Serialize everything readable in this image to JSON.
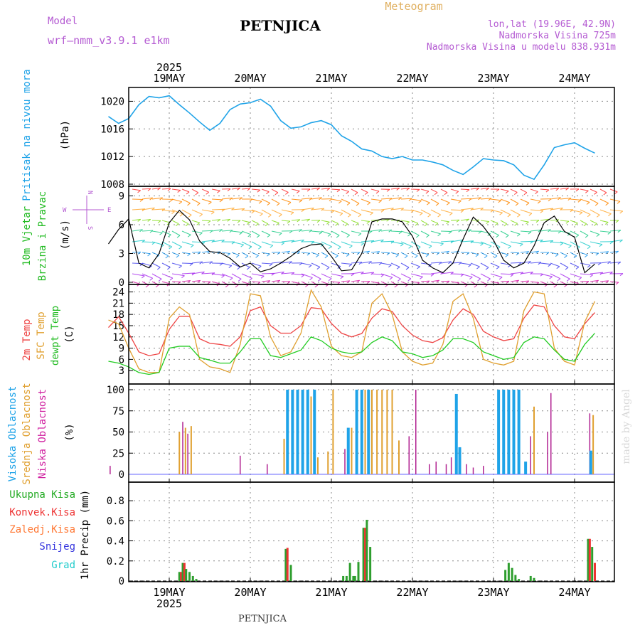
{
  "header": {
    "model_label": "Model",
    "model_name": "wrf—nmm_v3.9.1  e1km",
    "station": "PETNJICA",
    "product": "Meteogram",
    "coords": "lon,lat (19.96E, 42.9N)",
    "elevation": "Nadmorska Visina 725m",
    "model_elevation": "Nadmorska Visina u modelu 838.931m",
    "footer_station": "PETNJICA",
    "watermark": "made by Angel"
  },
  "time_axis": {
    "year": "2025",
    "day_labels": [
      "19MAY",
      "20MAY",
      "21MAY",
      "22MAY",
      "23MAY",
      "24MAY"
    ]
  },
  "panels": {
    "pressure": {
      "label": "Pritisak na nivou mora",
      "unit": "(hPa)",
      "ticks": [
        "1008",
        "1012",
        "1016",
        "1020"
      ]
    },
    "wind": {
      "label_line1": "10m Vjetar",
      "label_line2": "Brzina i Pravac",
      "unit": "(m/s)",
      "ticks": [
        "0",
        "3",
        "6",
        "9"
      ],
      "compass_top": "N",
      "compass_w": "W",
      "compass_e": "E",
      "compass_s": "S"
    },
    "temp": {
      "label_2m": "2m Temp",
      "label_sfc": "SFC Temp",
      "label_dew": "dewpt Temp",
      "unit": "(C)",
      "ticks": [
        "3",
        "6",
        "9",
        "12",
        "15",
        "18",
        "21",
        "24"
      ]
    },
    "cloud": {
      "label_high": "Visoka Oblacnost",
      "label_mid": "Srednja Oblacnost",
      "label_low": "Niska Oblacnost",
      "unit": "(%)",
      "ticks": [
        "0",
        "25",
        "50",
        "75",
        "100"
      ]
    },
    "precip": {
      "label_total": "Ukupna Kisa",
      "label_conv": "Konvek.Kisa",
      "label_frz": "Zaledj.Kisa",
      "label_snow": "Snijeg",
      "label_grad": "Grad",
      "unit": "1hr Precip (mm)",
      "ticks": [
        "0",
        "0.2",
        "0.4",
        "0.6",
        "0.8"
      ]
    }
  },
  "colors": {
    "pressure": "#1fa3e8",
    "wind_speed": "#000000",
    "t2m": "#ee4444",
    "sfc": "#e0a030",
    "dew": "#22cc22",
    "cloud_high": "#1fa3e8",
    "cloud_mid": "#e0a030",
    "cloud_low": "#b02090",
    "precip_total": "#2e9e2e",
    "precip_conv": "#ee3333",
    "precip_frz": "#ff7733",
    "precip_snow": "#3333dd",
    "precip_grad": "#22cccc"
  },
  "chart_data": [
    {
      "type": "line",
      "name": "pressure",
      "x": [
        0,
        3,
        6,
        9,
        12,
        15,
        18,
        21,
        24,
        27,
        30,
        33,
        36,
        39,
        42,
        45,
        48,
        51,
        54,
        57,
        60,
        63,
        66,
        69,
        72,
        75,
        78,
        81,
        84,
        87,
        90,
        93,
        96,
        99,
        102,
        105,
        108,
        111,
        114,
        117,
        120,
        123,
        126,
        129,
        132,
        135,
        138,
        141,
        144
      ],
      "y": [
        1017.8,
        1016.8,
        1017.5,
        1019.5,
        1020.7,
        1020.5,
        1020.8,
        1019.5,
        1018.3,
        1017.0,
        1015.8,
        1016.8,
        1018.8,
        1019.6,
        1019.8,
        1020.3,
        1019.3,
        1017.2,
        1016.1,
        1016.3,
        1016.9,
        1017.2,
        1016.6,
        1015.0,
        1014.2,
        1013.1,
        1012.8,
        1012.0,
        1011.7,
        1012.0,
        1011.5,
        1011.5,
        1011.2,
        1010.8,
        1010.0,
        1009.4,
        1010.5,
        1011.7,
        1011.5,
        1011.4,
        1010.8,
        1009.3,
        1008.7,
        1010.8,
        1013.3,
        1013.7,
        1014.0,
        1013.2,
        1012.5
      ],
      "ylim": [
        1008,
        1022
      ]
    },
    {
      "type": "line",
      "name": "wind_speed",
      "x": [
        0,
        3,
        6,
        9,
        12,
        15,
        18,
        21,
        24,
        27,
        30,
        33,
        36,
        39,
        42,
        45,
        48,
        51,
        54,
        57,
        60,
        63,
        66,
        69,
        72,
        75,
        78,
        81,
        84,
        87,
        90,
        93,
        96,
        99,
        102,
        105,
        108,
        111,
        114,
        117,
        120,
        123,
        126,
        129,
        132,
        135,
        138,
        141,
        144
      ],
      "y": [
        4.0,
        5.5,
        6.6,
        2.0,
        1.5,
        3.0,
        6.2,
        7.5,
        6.5,
        4.3,
        3.2,
        3.1,
        2.5,
        1.6,
        2.0,
        1.1,
        1.4,
        2.0,
        2.7,
        3.5,
        3.9,
        4.0,
        2.7,
        1.2,
        1.3,
        3.0,
        6.3,
        6.6,
        6.6,
        6.3,
        4.8,
        2.3,
        1.5,
        1.0,
        2.0,
        4.5,
        6.8,
        5.8,
        4.4,
        2.3,
        1.5,
        2.0,
        3.8,
        6.2,
        6.9,
        5.3,
        4.7,
        1.0,
        1.9
      ],
      "ylim": [
        0,
        10
      ]
    },
    {
      "type": "line",
      "name": "temperature",
      "x": [
        0,
        3,
        6,
        9,
        12,
        15,
        18,
        21,
        24,
        27,
        30,
        33,
        36,
        39,
        42,
        45,
        48,
        51,
        54,
        57,
        60,
        63,
        66,
        69,
        72,
        75,
        78,
        81,
        84,
        87,
        90,
        93,
        96,
        99,
        102,
        105,
        108,
        111,
        114,
        117,
        120,
        123,
        126,
        129,
        132,
        135,
        138,
        141,
        144
      ],
      "series": [
        {
          "name": "2m Temp",
          "values": [
            14.5,
            17.4,
            13.0,
            8.0,
            7.0,
            7.5,
            14.0,
            17.5,
            17.5,
            11.5,
            10.3,
            10.0,
            9.5,
            12.0,
            19.0,
            20.0,
            15.0,
            13.0,
            13.0,
            15.0,
            19.8,
            19.5,
            15.6,
            13.0,
            12.0,
            12.9,
            17.0,
            19.5,
            18.8,
            15.0,
            12.5,
            11.0,
            10.5,
            11.8,
            16.5,
            19.5,
            18.0,
            13.5,
            12.0,
            11.0,
            11.5,
            17.0,
            20.5,
            20.0,
            15.0,
            12.0,
            11.5,
            15.5,
            18.5
          ]
        },
        {
          "name": "SFC Temp",
          "values": [
            16.5,
            15.5,
            9.0,
            3.5,
            2.5,
            2.5,
            17.0,
            20.0,
            18.0,
            6.0,
            4.0,
            3.5,
            2.5,
            10.0,
            23.5,
            23.0,
            12.0,
            7.0,
            8.0,
            13.0,
            24.5,
            20.0,
            9.5,
            7.0,
            6.5,
            8.0,
            21.0,
            23.5,
            18.0,
            8.0,
            5.5,
            4.5,
            5.0,
            10.0,
            21.5,
            23.5,
            17.0,
            6.0,
            5.0,
            4.5,
            5.5,
            19.0,
            24.0,
            23.5,
            9.0,
            5.5,
            4.5,
            16.0,
            21.5
          ]
        },
        {
          "name": "dewpt Temp",
          "values": [
            5.5,
            5.0,
            4.0,
            2.5,
            2.0,
            2.5,
            9.0,
            9.5,
            9.5,
            6.5,
            5.8,
            5.0,
            5.0,
            8.0,
            11.5,
            11.5,
            7.0,
            6.5,
            7.5,
            8.5,
            12.0,
            11.0,
            9.0,
            8.0,
            7.5,
            8.0,
            10.5,
            12.0,
            11.0,
            8.0,
            7.5,
            6.5,
            7.0,
            8.5,
            11.5,
            11.5,
            10.5,
            8.0,
            7.0,
            6.0,
            6.5,
            10.5,
            12.0,
            11.5,
            8.5,
            6.0,
            5.5,
            10.0,
            13.0
          ]
        }
      ],
      "ylim": [
        0,
        26
      ]
    },
    {
      "type": "bar",
      "name": "cloud_cover",
      "ylim": [
        0,
        100
      ],
      "events": [
        {
          "series": "low",
          "x": 0.5,
          "v": 10
        },
        {
          "series": "mid",
          "x": 21,
          "v": 50
        },
        {
          "series": "low",
          "x": 22,
          "v": 62
        },
        {
          "series": "mid",
          "x": 22.8,
          "v": 55
        },
        {
          "series": "low",
          "x": 23.5,
          "v": 48
        },
        {
          "series": "mid",
          "x": 24.5,
          "v": 57
        },
        {
          "series": "low",
          "x": 39,
          "v": 22
        },
        {
          "series": "low",
          "x": 47,
          "v": 12
        },
        {
          "series": "mid",
          "x": 52,
          "v": 42
        },
        {
          "series": "high",
          "x": 53,
          "v": 100
        },
        {
          "series": "high",
          "x": 54.5,
          "v": 100
        },
        {
          "series": "high",
          "x": 56,
          "v": 100
        },
        {
          "series": "high",
          "x": 57.5,
          "v": 100
        },
        {
          "series": "high",
          "x": 59,
          "v": 100
        },
        {
          "series": "mid",
          "x": 60,
          "v": 92
        },
        {
          "series": "high",
          "x": 61,
          "v": 100
        },
        {
          "series": "mid",
          "x": 62,
          "v": 20
        },
        {
          "series": "mid",
          "x": 65,
          "v": 27
        },
        {
          "series": "mid",
          "x": 66.5,
          "v": 100
        },
        {
          "series": "low",
          "x": 70,
          "v": 30
        },
        {
          "series": "high",
          "x": 71,
          "v": 55
        },
        {
          "series": "mid",
          "x": 72,
          "v": 55
        },
        {
          "series": "high",
          "x": 73.5,
          "v": 100
        },
        {
          "series": "high",
          "x": 75,
          "v": 100
        },
        {
          "series": "mid",
          "x": 76,
          "v": 100
        },
        {
          "series": "high",
          "x": 77,
          "v": 100
        },
        {
          "series": "mid",
          "x": 78,
          "v": 100
        },
        {
          "series": "mid",
          "x": 79.5,
          "v": 100
        },
        {
          "series": "mid",
          "x": 81,
          "v": 100
        },
        {
          "series": "mid",
          "x": 82.5,
          "v": 100
        },
        {
          "series": "mid",
          "x": 84,
          "v": 100
        },
        {
          "series": "mid",
          "x": 86,
          "v": 40
        },
        {
          "series": "low",
          "x": 89,
          "v": 45
        },
        {
          "series": "low",
          "x": 91,
          "v": 100
        },
        {
          "series": "low",
          "x": 95,
          "v": 12
        },
        {
          "series": "low",
          "x": 97,
          "v": 15
        },
        {
          "series": "low",
          "x": 100,
          "v": 12
        },
        {
          "series": "low",
          "x": 101.5,
          "v": 20
        },
        {
          "series": "high",
          "x": 103,
          "v": 95
        },
        {
          "series": "high",
          "x": 104,
          "v": 32
        },
        {
          "series": "low",
          "x": 106,
          "v": 12
        },
        {
          "series": "low",
          "x": 108,
          "v": 8
        },
        {
          "series": "low",
          "x": 111,
          "v": 10
        },
        {
          "series": "high",
          "x": 115.5,
          "v": 100
        },
        {
          "series": "high",
          "x": 117,
          "v": 100
        },
        {
          "series": "high",
          "x": 118.5,
          "v": 100
        },
        {
          "series": "high",
          "x": 120,
          "v": 100
        },
        {
          "series": "high",
          "x": 121.5,
          "v": 100
        },
        {
          "series": "high",
          "x": 123.5,
          "v": 15
        },
        {
          "series": "low",
          "x": 125,
          "v": 45
        },
        {
          "series": "mid",
          "x": 126,
          "v": 80
        },
        {
          "series": "low",
          "x": 130,
          "v": 50
        },
        {
          "series": "low",
          "x": 131,
          "v": 96
        },
        {
          "series": "low",
          "x": 142.5,
          "v": 72
        },
        {
          "series": "high",
          "x": 142.8,
          "v": 28
        },
        {
          "series": "mid",
          "x": 143.5,
          "v": 70
        }
      ]
    },
    {
      "type": "bar",
      "name": "precip_1hr",
      "ylim": [
        0,
        0.95
      ],
      "events": [
        {
          "series": "total",
          "x": 21,
          "v": 0.09
        },
        {
          "series": "conv",
          "x": 21.5,
          "v": 0.09
        },
        {
          "series": "total",
          "x": 22,
          "v": 0.18
        },
        {
          "series": "conv",
          "x": 22.5,
          "v": 0.18
        },
        {
          "series": "total",
          "x": 23,
          "v": 0.12
        },
        {
          "series": "total",
          "x": 24,
          "v": 0.09
        },
        {
          "series": "total",
          "x": 25,
          "v": 0.05
        },
        {
          "series": "total",
          "x": 26,
          "v": 0.02
        },
        {
          "series": "total",
          "x": 52.5,
          "v": 0.32
        },
        {
          "series": "conv",
          "x": 53,
          "v": 0.33
        },
        {
          "series": "total",
          "x": 54,
          "v": 0.16
        },
        {
          "series": "total",
          "x": 69.5,
          "v": 0.05
        },
        {
          "series": "total",
          "x": 70.5,
          "v": 0.05
        },
        {
          "series": "total",
          "x": 71.5,
          "v": 0.18
        },
        {
          "series": "total",
          "x": 72.5,
          "v": 0.05
        },
        {
          "series": "total",
          "x": 73,
          "v": 0.05
        },
        {
          "series": "total",
          "x": 74,
          "v": 0.19
        },
        {
          "series": "total",
          "x": 75.5,
          "v": 0.53
        },
        {
          "series": "conv",
          "x": 76,
          "v": 0.53
        },
        {
          "series": "total",
          "x": 76.5,
          "v": 0.61
        },
        {
          "series": "total",
          "x": 77.5,
          "v": 0.34
        },
        {
          "series": "total",
          "x": 117.5,
          "v": 0.11
        },
        {
          "series": "total",
          "x": 118.5,
          "v": 0.18
        },
        {
          "series": "total",
          "x": 119.5,
          "v": 0.13
        },
        {
          "series": "total",
          "x": 120.5,
          "v": 0.06
        },
        {
          "series": "total",
          "x": 121.5,
          "v": 0.02
        },
        {
          "series": "total",
          "x": 125,
          "v": 0.05
        },
        {
          "series": "total",
          "x": 126,
          "v": 0.03
        },
        {
          "series": "total",
          "x": 142,
          "v": 0.42
        },
        {
          "series": "conv",
          "x": 142.5,
          "v": 0.42
        },
        {
          "series": "total",
          "x": 143.2,
          "v": 0.34
        },
        {
          "series": "conv",
          "x": 144,
          "v": 0.18
        }
      ]
    }
  ]
}
